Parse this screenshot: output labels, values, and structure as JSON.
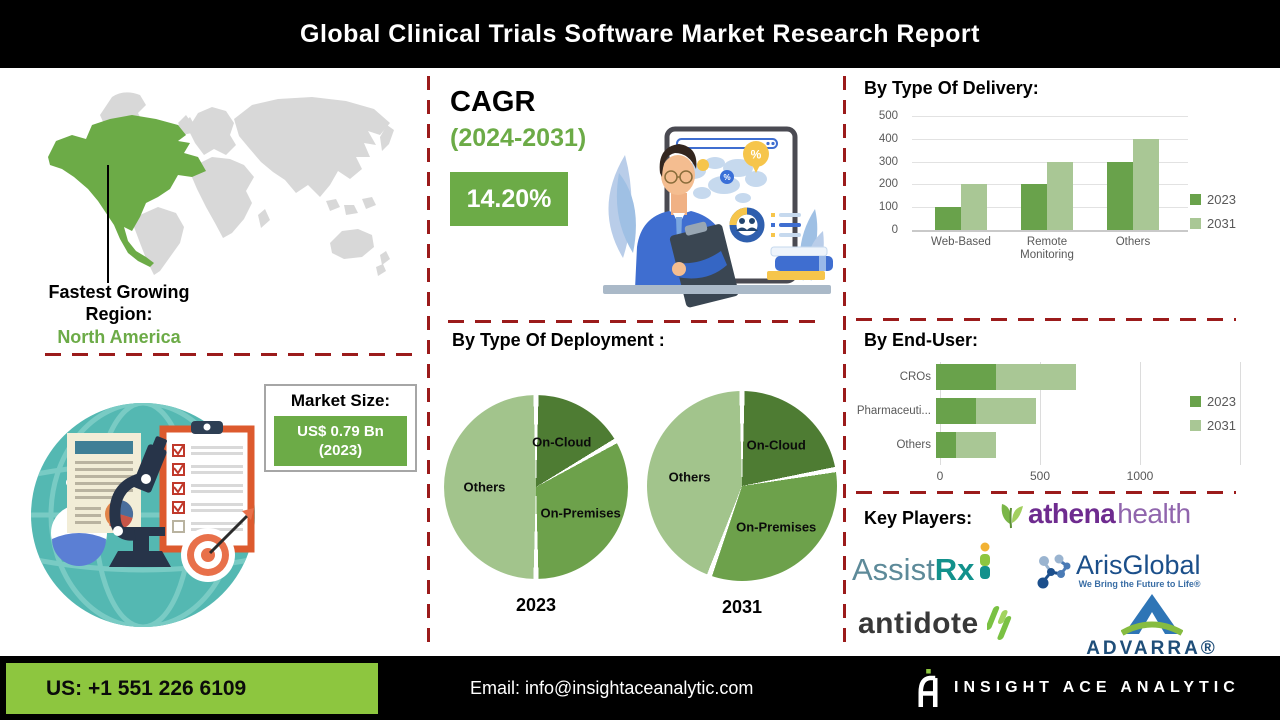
{
  "header": {
    "title": "Global Clinical Trials Software Market Research Report"
  },
  "left": {
    "region_title_line1": "Fastest Growing",
    "region_title_line2": "Region:",
    "region_value": "North America",
    "market_size_label": "Market Size:",
    "market_size_value": "US$ 0.79 Bn",
    "market_size_year": "(2023)"
  },
  "cagr": {
    "label": "CAGR",
    "period": "(2024-2031)",
    "value": "14.20%"
  },
  "chart_data": [
    {
      "id": "delivery",
      "type": "bar",
      "title": "By Type Of Delivery:",
      "categories": [
        "Web-Based",
        "Remote Monitoring",
        "Others"
      ],
      "series": [
        {
          "name": "2023",
          "color": "#69a24b",
          "values": [
            100,
            200,
            300
          ]
        },
        {
          "name": "2031",
          "color": "#a9c795",
          "values": [
            200,
            300,
            400
          ]
        }
      ],
      "ylim": [
        0,
        500
      ],
      "yticks": [
        0,
        100,
        200,
        300,
        400,
        500
      ],
      "grid": true,
      "legend_position": "right"
    },
    {
      "id": "deployment",
      "type": "pie",
      "title": "By Type Of Deployment :",
      "pies": [
        {
          "label": "2023",
          "slices": [
            {
              "name": "On-Cloud",
              "value": 100,
              "color": "#4e7c33"
            },
            {
              "name": "On-Premises",
              "value": 200,
              "color": "#6da14b"
            },
            {
              "name": "Others",
              "value": 300,
              "color": "#a2c48c"
            }
          ]
        },
        {
          "label": "2031",
          "slices": [
            {
              "name": "On-Cloud",
              "value": 200,
              "color": "#4e7c33"
            },
            {
              "name": "On-Premises",
              "value": 300,
              "color": "#6da14b"
            },
            {
              "name": "Others",
              "value": 400,
              "color": "#a2c48c"
            }
          ]
        }
      ]
    },
    {
      "id": "end_user",
      "type": "bar",
      "orientation": "horizontal",
      "stacked": true,
      "title": "By End-User:",
      "categories": [
        "CROs",
        "Pharmaceuti...",
        "Others"
      ],
      "series": [
        {
          "name": "2023",
          "color": "#69a24b",
          "values": [
            300,
            200,
            100
          ]
        },
        {
          "name": "2031",
          "color": "#a9c795",
          "values": [
            400,
            300,
            200
          ]
        }
      ],
      "xlim": [
        0,
        1500
      ],
      "xticks": [
        0,
        500,
        1000
      ],
      "grid": true,
      "legend_position": "right"
    }
  ],
  "key_players": {
    "label": "Key Players:",
    "athenahealth": {
      "part1": "athena",
      "part2": "health"
    },
    "assistrx": {
      "part1": "Assist",
      "part2": "Rx"
    },
    "arisglobal": {
      "name": "ArisGlobal",
      "tagline": "We Bring the Future to Life®"
    },
    "antidote": {
      "name": "antidote"
    },
    "advarra": {
      "name": "ADVARRA®"
    }
  },
  "footer": {
    "phone": "US: +1 551 226 6109",
    "email": "Email: info@insightaceanalytic.com",
    "brand": "INSIGHT ACE ANALYTIC"
  },
  "colors": {
    "accent_green": "#6cab47",
    "footer_green": "#8dc63f",
    "series_2023": "#69a24b",
    "series_2031": "#a9c795",
    "divider_red": "#9b1b1b",
    "chart_text": "#595959"
  }
}
